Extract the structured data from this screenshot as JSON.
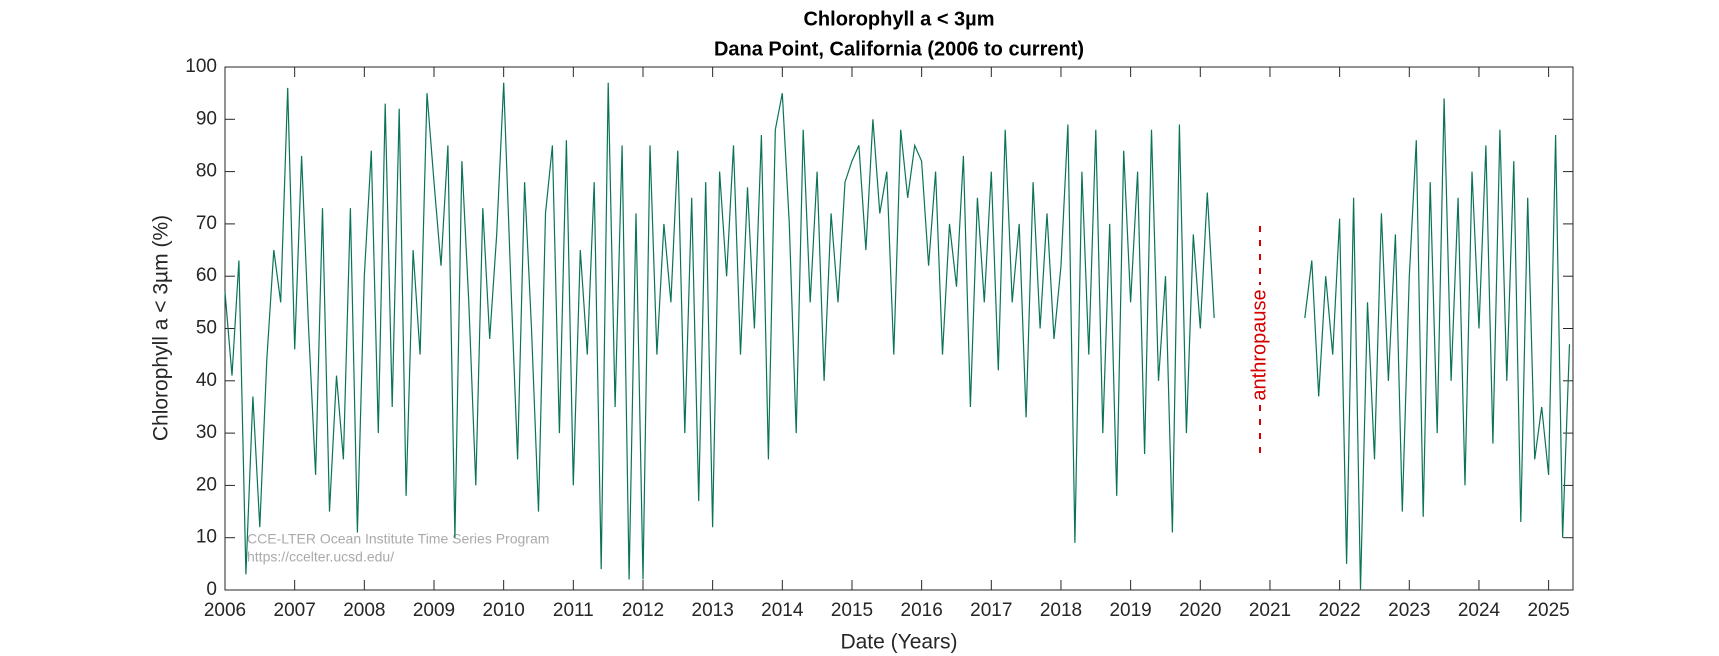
{
  "chart_data": {
    "type": "line",
    "title": "Chlorophyll a < 3µm",
    "subtitle": "Dana Point, California (2006 to current)",
    "x_label": "Date (Years)",
    "y_label": "Chlorophyll a < 3µm (%)",
    "annotation": "anthropause",
    "watermark": [
      "CCE-LTER Ocean Institute Time Series Program",
      "https://ccelter.ucsd.edu/"
    ],
    "color": "#0b7358",
    "xlim": [
      2006,
      2025.35
    ],
    "ylim": [
      0,
      100
    ],
    "xticks": [
      2006,
      2007,
      2008,
      2009,
      2010,
      2011,
      2012,
      2013,
      2014,
      2015,
      2016,
      2017,
      2018,
      2019,
      2020,
      2021,
      2022,
      2023,
      2024,
      2025
    ],
    "yticks": [
      0,
      10,
      20,
      30,
      40,
      50,
      60,
      70,
      80,
      90,
      100
    ],
    "x": [
      2006.0,
      2006.1,
      2006.2,
      2006.3,
      2006.4,
      2006.5,
      2006.6,
      2006.7,
      2006.8,
      2006.9,
      2007.0,
      2007.1,
      2007.2,
      2007.3,
      2007.4,
      2007.5,
      2007.6,
      2007.7,
      2007.8,
      2007.9,
      2008.0,
      2008.1,
      2008.2,
      2008.3,
      2008.4,
      2008.5,
      2008.6,
      2008.7,
      2008.8,
      2008.9,
      2009.0,
      2009.1,
      2009.2,
      2009.3,
      2009.4,
      2009.5,
      2009.6,
      2009.7,
      2009.8,
      2009.9,
      2010.0,
      2010.1,
      2010.2,
      2010.3,
      2010.4,
      2010.5,
      2010.6,
      2010.7,
      2010.8,
      2010.9,
      2011.0,
      2011.1,
      2011.2,
      2011.3,
      2011.4,
      2011.5,
      2011.6,
      2011.7,
      2011.8,
      2011.9,
      2012.0,
      2012.1,
      2012.2,
      2012.3,
      2012.4,
      2012.5,
      2012.6,
      2012.7,
      2012.8,
      2012.9,
      2013.0,
      2013.1,
      2013.2,
      2013.3,
      2013.4,
      2013.5,
      2013.6,
      2013.7,
      2013.8,
      2013.9,
      2014.0,
      2014.1,
      2014.2,
      2014.3,
      2014.4,
      2014.5,
      2014.6,
      2014.7,
      2014.8,
      2014.9,
      2015.0,
      2015.1,
      2015.2,
      2015.3,
      2015.4,
      2015.5,
      2015.6,
      2015.7,
      2015.8,
      2015.9,
      2016.0,
      2016.1,
      2016.2,
      2016.3,
      2016.4,
      2016.5,
      2016.6,
      2016.7,
      2016.8,
      2016.9,
      2017.0,
      2017.1,
      2017.2,
      2017.3,
      2017.4,
      2017.5,
      2017.6,
      2017.7,
      2017.8,
      2017.9,
      2018.0,
      2018.1,
      2018.2,
      2018.3,
      2018.4,
      2018.5,
      2018.6,
      2018.7,
      2018.8,
      2018.9,
      2019.0,
      2019.1,
      2019.2,
      2019.3,
      2019.4,
      2019.5,
      2019.6,
      2019.7,
      2019.8,
      2019.9,
      2020.0,
      2020.1,
      2020.2,
      2021.0,
      2021.5,
      2021.6,
      2021.7,
      2021.8,
      2021.9,
      2022.0,
      2022.1,
      2022.2,
      2022.3,
      2022.4,
      2022.5,
      2022.6,
      2022.7,
      2022.8,
      2022.9,
      2023.0,
      2023.1,
      2023.2,
      2023.3,
      2023.4,
      2023.5,
      2023.6,
      2023.7,
      2023.8,
      2023.9,
      2024.0,
      2024.1,
      2024.2,
      2024.3,
      2024.4,
      2024.5,
      2024.6,
      2024.7,
      2024.8,
      2024.9,
      2025.0,
      2025.1,
      2025.2,
      2025.3
    ],
    "values": [
      57,
      41,
      63,
      3,
      37,
      12,
      44,
      65,
      55,
      96,
      46,
      83,
      50,
      22,
      73,
      15,
      41,
      25,
      73,
      11,
      60,
      84,
      30,
      93,
      35,
      92,
      18,
      65,
      45,
      95,
      78,
      62,
      85,
      10,
      82,
      55,
      20,
      73,
      48,
      68,
      97,
      60,
      25,
      78,
      50,
      15,
      72,
      85,
      30,
      86,
      20,
      65,
      45,
      78,
      4,
      97,
      35,
      85,
      2,
      72,
      2,
      85,
      45,
      70,
      55,
      84,
      30,
      75,
      17,
      78,
      12,
      80,
      60,
      85,
      45,
      77,
      50,
      87,
      25,
      88,
      95,
      70,
      30,
      88,
      55,
      80,
      40,
      72,
      55,
      78,
      82,
      85,
      65,
      90,
      72,
      80,
      45,
      88,
      75,
      85,
      82,
      62,
      80,
      45,
      70,
      58,
      83,
      35,
      75,
      55,
      80,
      42,
      88,
      55,
      70,
      33,
      78,
      50,
      72,
      48,
      62,
      89,
      9,
      80,
      45,
      88,
      30,
      70,
      18,
      84,
      55,
      80,
      26,
      88,
      40,
      60,
      11,
      89,
      30,
      68,
      50,
      76,
      52,
      null,
      52,
      63,
      37,
      60,
      45,
      71,
      5,
      75,
      0,
      55,
      25,
      72,
      40,
      68,
      15,
      60,
      86,
      14,
      78,
      30,
      94,
      40,
      75,
      20,
      80,
      50,
      85,
      28,
      88,
      40,
      82,
      13,
      75,
      25,
      35,
      22,
      87,
      10,
      47
    ]
  }
}
